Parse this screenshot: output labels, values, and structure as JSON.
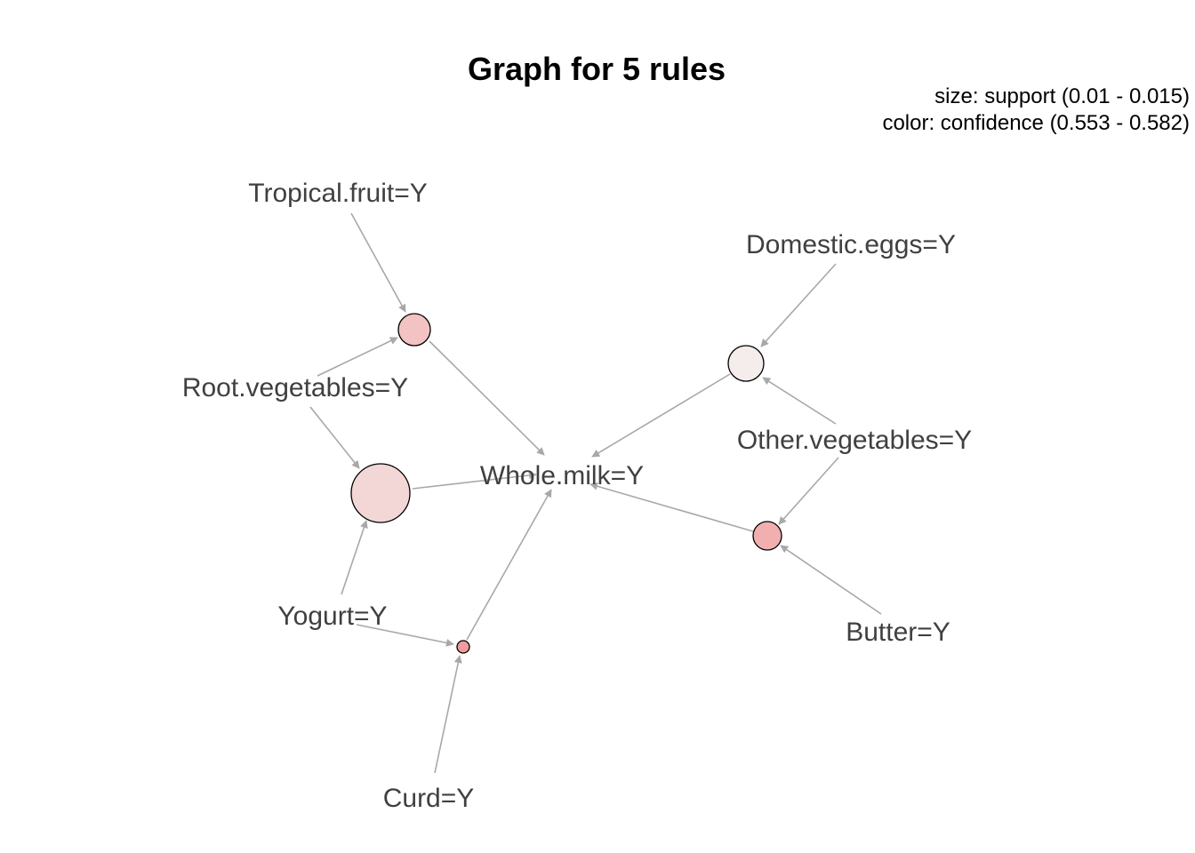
{
  "title": "Graph for 5 rules",
  "legend": {
    "size": "size: support (0.01 - 0.015)",
    "color": "color: confidence (0.553 - 0.582)"
  },
  "colors": {
    "edge": "#a8a8a8",
    "label": "#404040",
    "rule_low": "#f5ecec",
    "rule_high": "#f2a8a8"
  },
  "items": [
    {
      "id": "tropical",
      "label": "Tropical.fruit=Y"
    },
    {
      "id": "root",
      "label": "Root.vegetables=Y"
    },
    {
      "id": "yogurt",
      "label": "Yogurt=Y"
    },
    {
      "id": "curd",
      "label": "Curd=Y"
    },
    {
      "id": "whole",
      "label": "Whole.milk=Y"
    },
    {
      "id": "eggs",
      "label": "Domestic.eggs=Y"
    },
    {
      "id": "other",
      "label": "Other.vegetables=Y"
    },
    {
      "id": "butter",
      "label": "Butter=Y"
    }
  ],
  "rules": [
    {
      "id": "r1",
      "lhs": [
        "Tropical.fruit=Y",
        "Root.vegetables=Y"
      ],
      "rhs": "Whole.milk=Y",
      "color": "#f3c2c2"
    },
    {
      "id": "r2",
      "lhs": [
        "Root.vegetables=Y",
        "Yogurt=Y"
      ],
      "rhs": "Whole.milk=Y",
      "color": "#f3d6d6"
    },
    {
      "id": "r3",
      "lhs": [
        "Yogurt=Y",
        "Curd=Y"
      ],
      "rhs": "Whole.milk=Y",
      "color": "#ef9c9c"
    },
    {
      "id": "r4",
      "lhs": [
        "Domestic.eggs=Y",
        "Other.vegetables=Y"
      ],
      "rhs": "Whole.milk=Y",
      "color": "#f5ecec"
    },
    {
      "id": "r5",
      "lhs": [
        "Other.vegetables=Y",
        "Butter=Y"
      ],
      "rhs": "Whole.milk=Y",
      "color": "#f2afaf"
    }
  ]
}
